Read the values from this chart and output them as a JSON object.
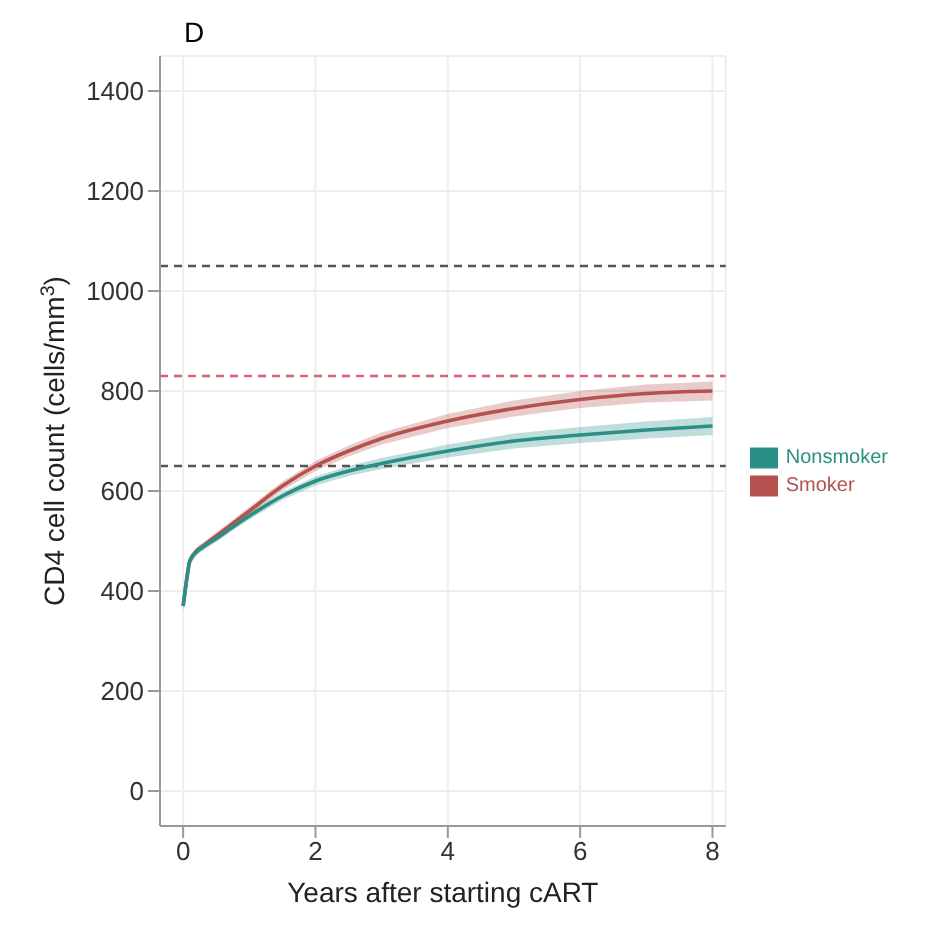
{
  "chart_data": {
    "type": "line",
    "title": "D",
    "xlabel": "Years after starting cART",
    "ylabel": "CD4 cell count (cells/mm$^{3}$)",
    "x": [
      0,
      0.05,
      0.1,
      0.2,
      0.3,
      0.5,
      0.75,
      1,
      1.5,
      2,
      2.5,
      3,
      4,
      5,
      6,
      7,
      8
    ],
    "series": [
      {
        "name": "Smoker",
        "color": "#b5524f",
        "values": [
          370,
          420,
          460,
          480,
          490,
          510,
          535,
          560,
          610,
          650,
          680,
          705,
          740,
          765,
          783,
          795,
          800
        ],
        "lower": [
          360,
          412,
          452,
          473,
          483,
          503,
          528,
          552,
          601,
          640,
          669,
          693,
          726,
          749,
          766,
          777,
          781
        ],
        "upper": [
          380,
          428,
          468,
          487,
          497,
          517,
          542,
          568,
          619,
          660,
          691,
          717,
          754,
          781,
          800,
          813,
          819
        ]
      },
      {
        "name": "Nonsmoker",
        "color": "#2a8f86",
        "values": [
          370,
          420,
          460,
          478,
          488,
          505,
          528,
          550,
          590,
          620,
          640,
          655,
          680,
          700,
          712,
          722,
          730
        ],
        "lower": [
          360,
          412,
          452,
          471,
          481,
          498,
          521,
          543,
          582,
          611,
          630,
          644,
          667,
          685,
          696,
          705,
          712
        ],
        "upper": [
          380,
          428,
          468,
          485,
          495,
          512,
          535,
          557,
          598,
          629,
          650,
          666,
          693,
          715,
          728,
          739,
          748
        ]
      }
    ],
    "xlim": [
      -0.35,
      8.2
    ],
    "xticks": [
      0,
      2,
      4,
      6,
      8
    ],
    "ylim": [
      -70,
      1470
    ],
    "yticks": [
      0,
      200,
      400,
      600,
      800,
      1000,
      1200,
      1400
    ],
    "ref_lines": [
      {
        "axis": "y",
        "value": 1050,
        "color": "#555555",
        "line_style": "dashed"
      },
      {
        "axis": "y",
        "value": 830,
        "color": "#e06070",
        "line_style": "dashed"
      },
      {
        "axis": "y",
        "value": 650,
        "color": "#555555",
        "line_style": "dashed"
      }
    ],
    "grid": true,
    "legend": "right",
    "line_style": "solid",
    "marker": "none"
  }
}
